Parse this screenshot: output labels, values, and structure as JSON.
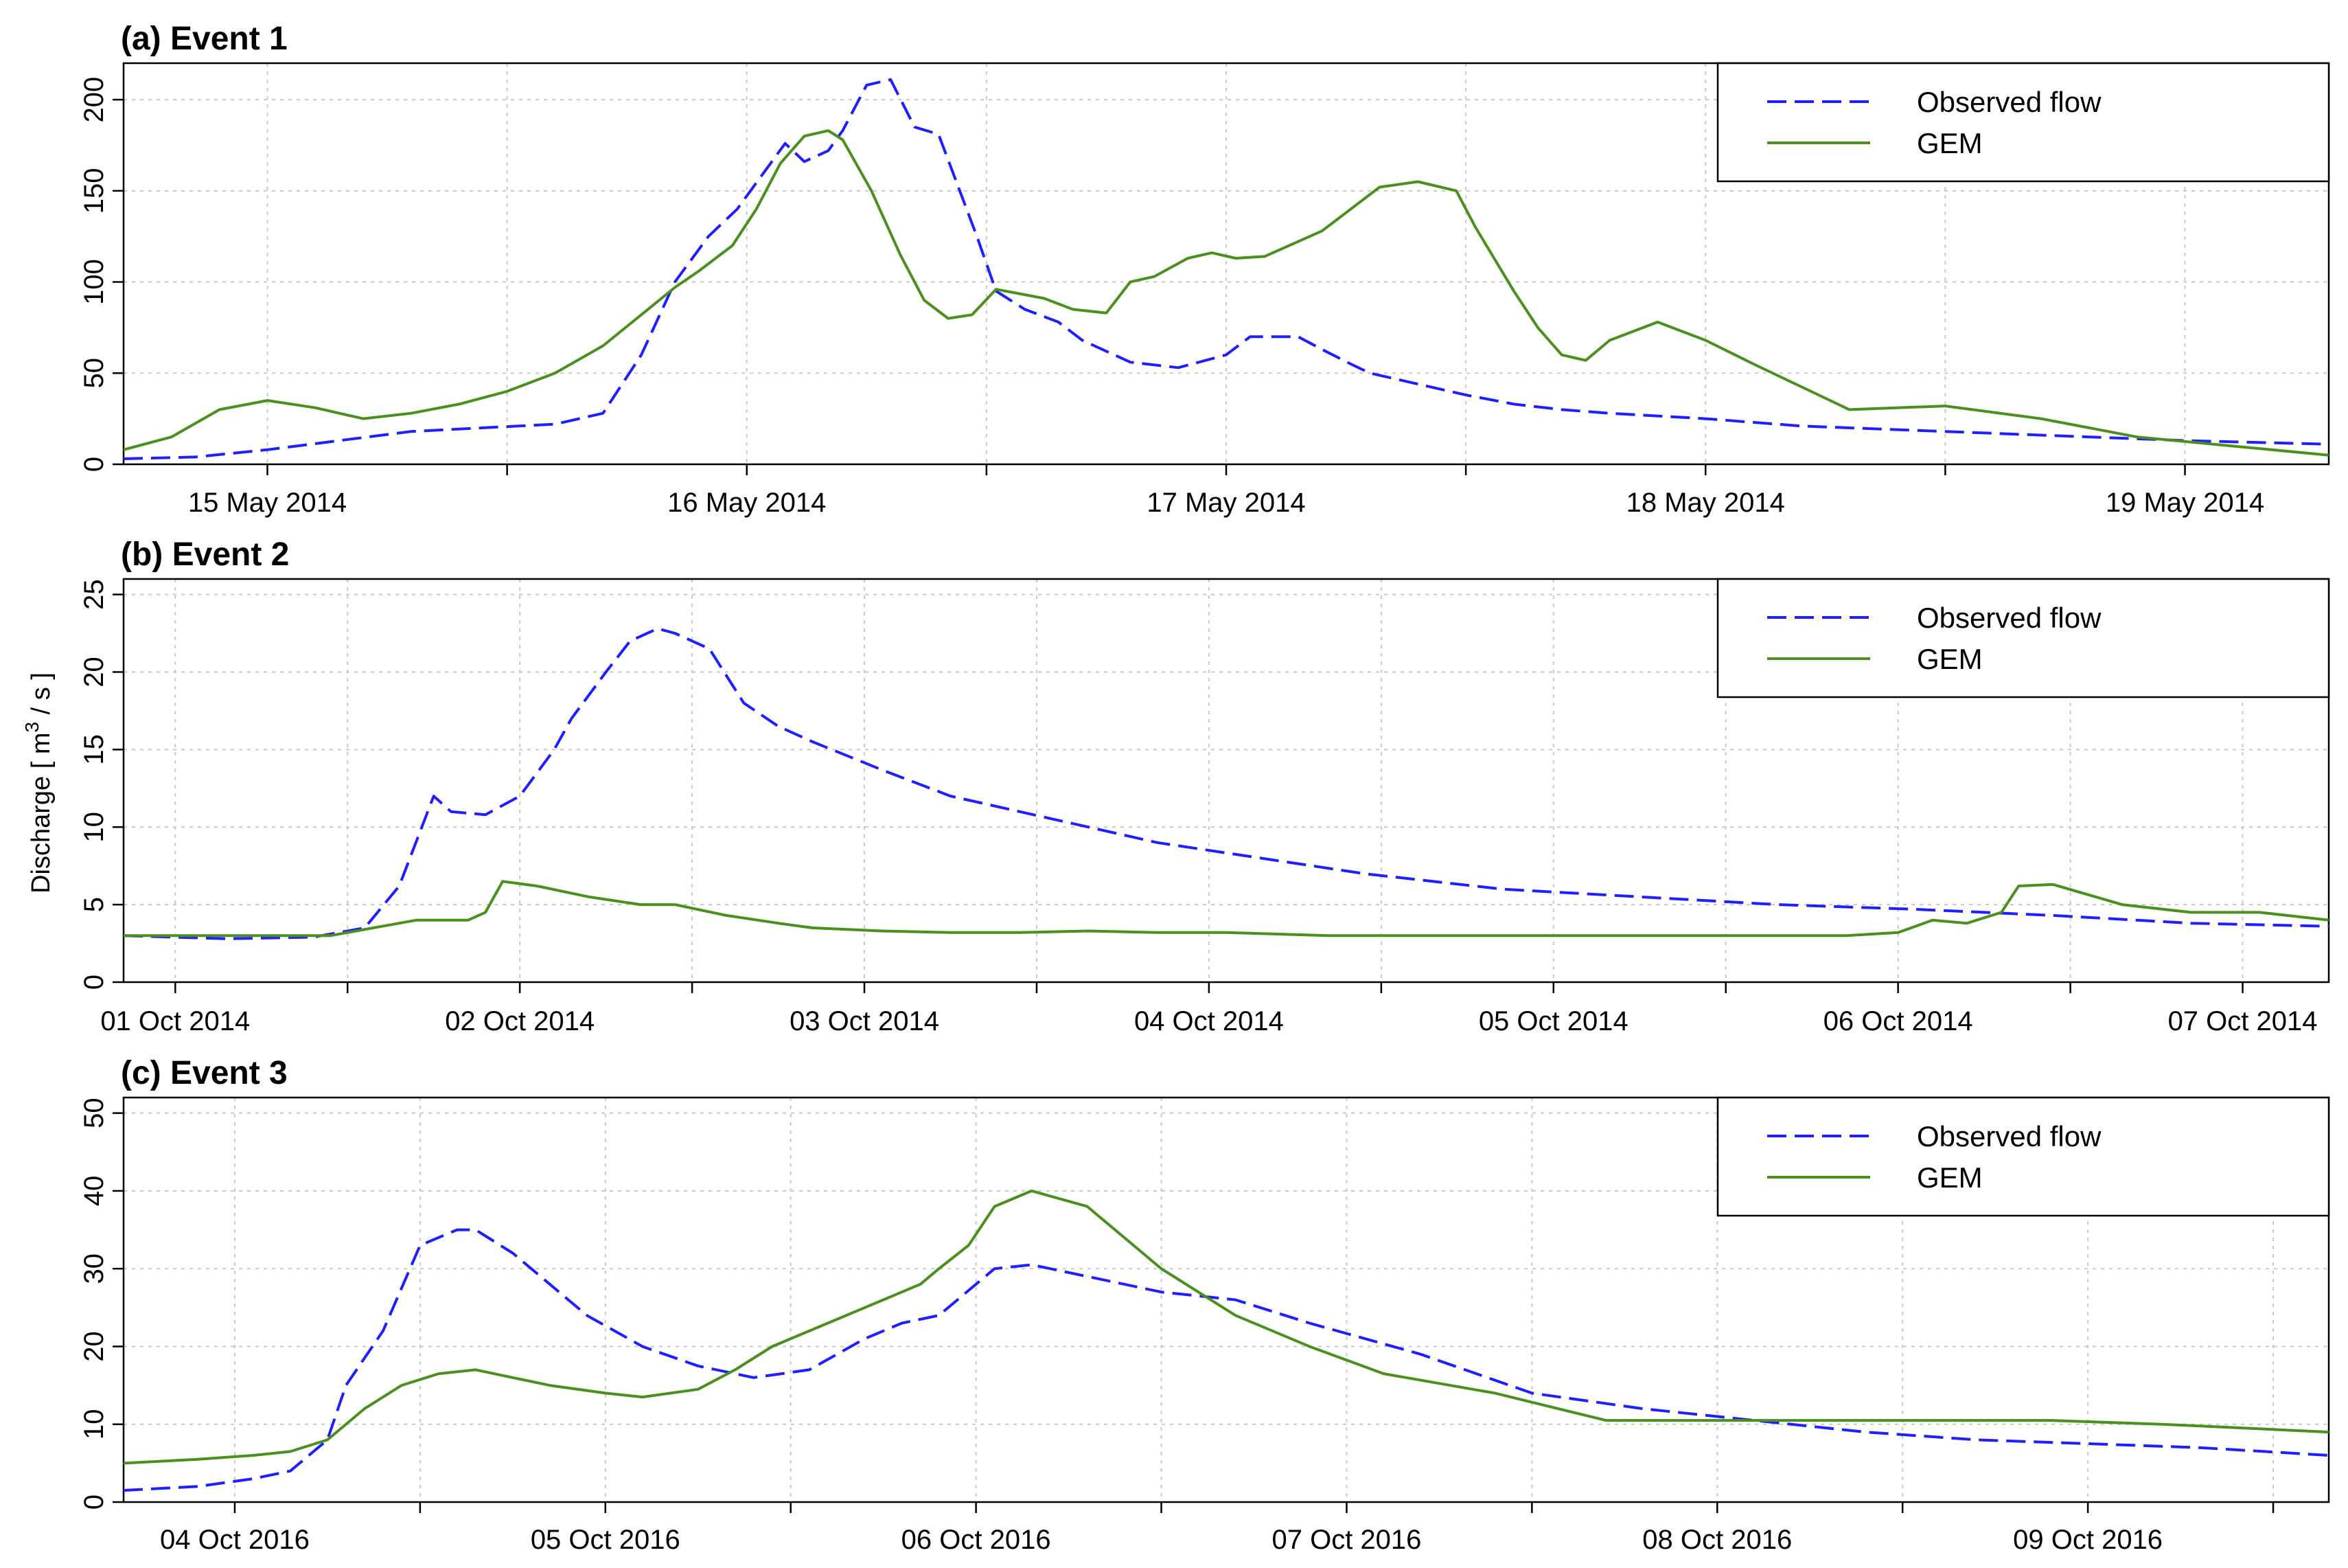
{
  "colors": {
    "observed": "#1f1fff",
    "gem": "#4a8f1f",
    "grid": "#c8c8c8",
    "axis": "#000000"
  },
  "y_axis_label": {
    "main": "Discharge [ m",
    "sup": "3",
    "tail": " / s ]"
  },
  "chart_data": [
    {
      "type": "line",
      "title": "(a) Event 1",
      "x_unit": "days",
      "xlim": [
        0,
        4.6
      ],
      "ylim": [
        0,
        220
      ],
      "yticks": [
        0,
        50,
        100,
        150,
        200
      ],
      "grid": true,
      "legend": "top-right",
      "xticks": [
        {
          "x": 0.3,
          "label": "15 May 2014"
        },
        {
          "x": 1.3,
          "label": "16 May 2014"
        },
        {
          "x": 2.3,
          "label": "17 May 2014"
        },
        {
          "x": 3.3,
          "label": "18 May 2014"
        },
        {
          "x": 4.3,
          "label": "19 May 2014"
        }
      ],
      "series": [
        {
          "name": "Observed flow",
          "style": "dashed",
          "x": [
            0,
            0.15,
            0.3,
            0.45,
            0.6,
            0.75,
            0.9,
            1.0,
            1.08,
            1.15,
            1.22,
            1.28,
            1.33,
            1.38,
            1.42,
            1.47,
            1.5,
            1.55,
            1.6,
            1.65,
            1.7,
            1.78,
            1.82,
            1.88,
            1.95,
            2.0,
            2.1,
            2.2,
            2.3,
            2.35,
            2.45,
            2.5,
            2.56,
            2.6,
            2.7,
            2.8,
            2.9,
            3.0,
            3.1,
            3.3,
            3.5,
            3.7,
            3.9,
            4.1,
            4.3,
            4.6
          ],
          "y": [
            3,
            4,
            8,
            13,
            18,
            20,
            22,
            28,
            60,
            100,
            125,
            140,
            158,
            176,
            166,
            172,
            183,
            208,
            211,
            185,
            181,
            125,
            95,
            85,
            78,
            68,
            56,
            53,
            60,
            70,
            70,
            63,
            55,
            50,
            44,
            38,
            33,
            30,
            28,
            25,
            21,
            19,
            17,
            15,
            13,
            11
          ]
        },
        {
          "name": "GEM",
          "style": "solid",
          "x": [
            0,
            0.1,
            0.2,
            0.3,
            0.4,
            0.5,
            0.6,
            0.7,
            0.8,
            0.9,
            1.0,
            1.08,
            1.15,
            1.2,
            1.27,
            1.32,
            1.37,
            1.42,
            1.47,
            1.5,
            1.56,
            1.62,
            1.67,
            1.72,
            1.77,
            1.82,
            1.88,
            1.92,
            1.98,
            2.05,
            2.1,
            2.15,
            2.22,
            2.27,
            2.32,
            2.38,
            2.5,
            2.62,
            2.7,
            2.78,
            2.82,
            2.9,
            2.95,
            3.0,
            3.05,
            3.1,
            3.2,
            3.3,
            3.4,
            3.6,
            3.8,
            4.0,
            4.2,
            4.4,
            4.6
          ],
          "y": [
            8,
            15,
            30,
            35,
            31,
            25,
            28,
            33,
            40,
            50,
            65,
            82,
            97,
            106,
            120,
            140,
            165,
            180,
            183,
            178,
            150,
            115,
            90,
            80,
            82,
            96,
            93,
            91,
            85,
            83,
            100,
            103,
            113,
            116,
            113,
            114,
            128,
            152,
            155,
            150,
            130,
            95,
            75,
            60,
            57,
            68,
            78,
            68,
            55,
            30,
            32,
            25,
            15,
            10,
            5
          ]
        }
      ]
    },
    {
      "type": "line",
      "title": "(b) Event 2",
      "x_unit": "days",
      "xlim": [
        0,
        6.4
      ],
      "ylim": [
        0,
        26
      ],
      "yticks": [
        0,
        5,
        10,
        15,
        20,
        25
      ],
      "grid": true,
      "legend": "top-right",
      "xticks": [
        {
          "x": 0.15,
          "label": "01 Oct 2014"
        },
        {
          "x": 1.15,
          "label": "02 Oct 2014"
        },
        {
          "x": 2.15,
          "label": "03 Oct 2014"
        },
        {
          "x": 3.15,
          "label": "04 Oct 2014"
        },
        {
          "x": 4.15,
          "label": "05 Oct 2014"
        },
        {
          "x": 5.15,
          "label": "06 Oct 2014"
        },
        {
          "x": 6.15,
          "label": "07 Oct 2014"
        }
      ],
      "series": [
        {
          "name": "Observed flow",
          "style": "dashed",
          "x": [
            0,
            0.3,
            0.55,
            0.7,
            0.8,
            0.9,
            0.95,
            1.05,
            1.15,
            1.25,
            1.3,
            1.4,
            1.47,
            1.55,
            1.6,
            1.7,
            1.8,
            1.9,
            2.0,
            2.2,
            2.4,
            2.7,
            3.0,
            3.3,
            3.6,
            4.0,
            4.4,
            4.8,
            5.2,
            5.6,
            6.0,
            6.4
          ],
          "y": [
            3,
            2.8,
            2.9,
            3.5,
            6.2,
            12,
            11,
            10.8,
            12,
            15,
            17,
            20,
            22,
            22.8,
            22.5,
            21.5,
            18,
            16.5,
            15.5,
            13.7,
            12,
            10.5,
            9,
            8,
            7,
            6,
            5.5,
            5,
            4.7,
            4.3,
            3.8,
            3.6
          ]
        },
        {
          "name": "GEM",
          "style": "solid",
          "x": [
            0,
            0.6,
            0.75,
            0.85,
            1.0,
            1.05,
            1.1,
            1.2,
            1.35,
            1.5,
            1.6,
            1.75,
            1.9,
            2.0,
            2.2,
            2.4,
            2.6,
            2.8,
            3.0,
            3.2,
            3.5,
            3.8,
            4.1,
            4.5,
            4.8,
            5.0,
            5.15,
            5.25,
            5.35,
            5.45,
            5.5,
            5.6,
            5.8,
            6.0,
            6.2,
            6.4
          ],
          "y": [
            3,
            3,
            3.6,
            4,
            4,
            4.5,
            6.5,
            6.2,
            5.5,
            5,
            5,
            4.3,
            3.8,
            3.5,
            3.3,
            3.2,
            3.2,
            3.3,
            3.2,
            3.2,
            3.0,
            3.0,
            3.0,
            3.0,
            3.0,
            3.0,
            3.2,
            4,
            3.8,
            4.5,
            6.2,
            6.3,
            5,
            4.5,
            4.5,
            4
          ]
        }
      ]
    },
    {
      "type": "line",
      "title": "(c) Event 3",
      "x_unit": "days",
      "xlim": [
        0,
        5.95
      ],
      "ylim": [
        0,
        52
      ],
      "yticks": [
        0,
        10,
        20,
        30,
        40,
        50
      ],
      "grid": true,
      "legend": "top-right",
      "xticks": [
        {
          "x": 0.3,
          "label": "04 Oct 2016"
        },
        {
          "x": 1.3,
          "label": "05 Oct 2016"
        },
        {
          "x": 2.3,
          "label": "06 Oct 2016"
        },
        {
          "x": 3.3,
          "label": "07 Oct 2016"
        },
        {
          "x": 4.3,
          "label": "08 Oct 2016"
        },
        {
          "x": 5.3,
          "label": "09 Oct 2016"
        }
      ],
      "series": [
        {
          "name": "Observed flow",
          "style": "dashed",
          "x": [
            0,
            0.2,
            0.35,
            0.45,
            0.55,
            0.6,
            0.7,
            0.8,
            0.9,
            0.95,
            1.05,
            1.15,
            1.25,
            1.4,
            1.55,
            1.7,
            1.85,
            2.0,
            2.1,
            2.2,
            2.3,
            2.35,
            2.45,
            2.6,
            2.8,
            3.0,
            3.2,
            3.5,
            3.8,
            4.1,
            4.4,
            4.7,
            5.0,
            5.3,
            5.6,
            5.95
          ],
          "y": [
            1.5,
            2,
            3,
            4,
            8,
            15,
            22,
            33,
            35,
            35,
            32,
            28,
            24,
            20,
            17.5,
            16,
            17,
            21,
            23,
            24,
            28,
            30,
            30.5,
            29,
            27,
            26,
            23,
            19,
            14,
            12,
            10.5,
            9,
            8,
            7.5,
            7,
            6
          ]
        },
        {
          "name": "GEM",
          "style": "solid",
          "x": [
            0,
            0.2,
            0.35,
            0.45,
            0.55,
            0.65,
            0.75,
            0.85,
            0.95,
            1.05,
            1.15,
            1.3,
            1.4,
            1.55,
            1.65,
            1.75,
            1.9,
            2.05,
            2.15,
            2.2,
            2.28,
            2.35,
            2.45,
            2.6,
            2.8,
            3.0,
            3.2,
            3.4,
            3.7,
            4.0,
            4.3,
            4.6,
            4.9,
            5.2,
            5.5,
            5.95
          ],
          "y": [
            5,
            5.5,
            6,
            6.5,
            8,
            12,
            15,
            16.5,
            17,
            16,
            15,
            14,
            13.5,
            14.5,
            17,
            20,
            23,
            26,
            28,
            30,
            33,
            38,
            40,
            38,
            30,
            24,
            20,
            16.5,
            14,
            10.5,
            10.5,
            10.5,
            10.5,
            10.5,
            10,
            9
          ]
        }
      ]
    }
  ]
}
